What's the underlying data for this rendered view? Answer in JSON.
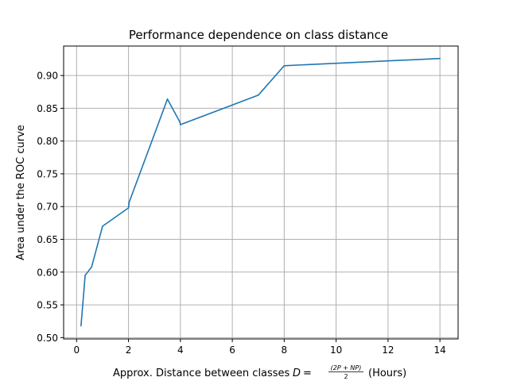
{
  "chart_data": {
    "type": "line",
    "title": "Performance dependence on class distance",
    "xlabel": {
      "prefix": "Approx. Distance between classes",
      "var": "D",
      "equals": "=",
      "numerator": "(2P + NP)",
      "denominator": "2",
      "suffix": "(Hours)"
    },
    "ylabel": "Area under the ROC curve",
    "xlim": [
      -0.5,
      14.7
    ],
    "ylim": [
      0.498,
      0.945
    ],
    "xticks": [
      0,
      2,
      4,
      6,
      8,
      10,
      12,
      14
    ],
    "xtick_labels": [
      "0",
      "2",
      "4",
      "6",
      "8",
      "10",
      "12",
      "14"
    ],
    "yticks": [
      0.5,
      0.55,
      0.6,
      0.65,
      0.7,
      0.75,
      0.8,
      0.85,
      0.9
    ],
    "ytick_labels": [
      "0.50",
      "0.55",
      "0.60",
      "0.65",
      "0.70",
      "0.75",
      "0.80",
      "0.85",
      "0.90"
    ],
    "grid": true,
    "series": [
      {
        "color": "#1f77b4",
        "x": [
          0.17,
          0.33,
          0.58,
          1.0,
          2.0,
          2.02,
          3.5,
          3.98,
          4.0,
          7.0,
          8.0,
          14.0
        ],
        "y": [
          0.518,
          0.595,
          0.608,
          0.67,
          0.698,
          0.706,
          0.864,
          0.829,
          0.825,
          0.87,
          0.915,
          0.926
        ]
      }
    ]
  }
}
